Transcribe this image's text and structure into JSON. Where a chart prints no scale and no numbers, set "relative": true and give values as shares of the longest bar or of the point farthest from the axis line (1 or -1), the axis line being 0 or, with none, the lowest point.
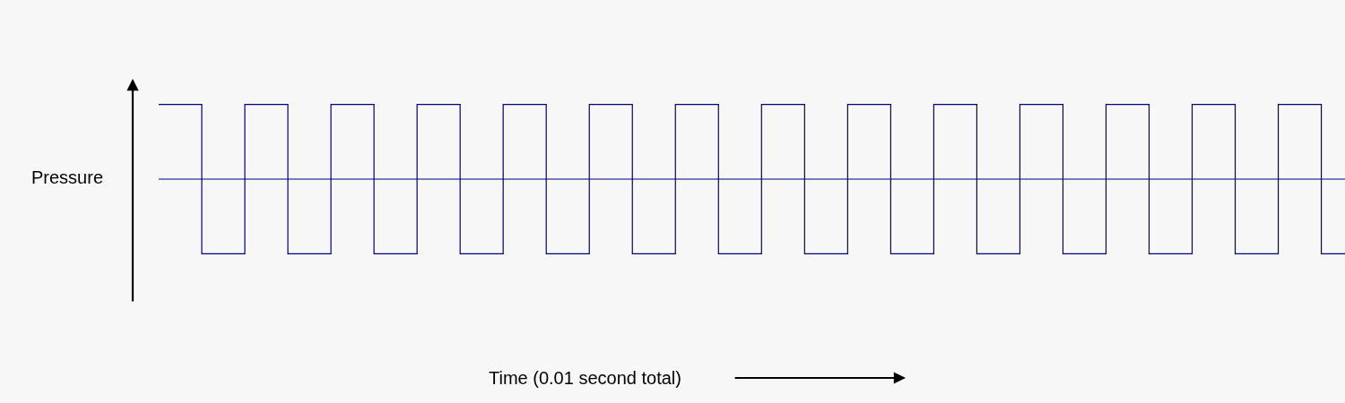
{
  "chart_data": {
    "type": "step",
    "relative": true,
    "annotations": [
      "Time (0.01 second total)"
    ],
    "ylabel": "Pressure",
    "categories": [
      null,
      null,
      null,
      null,
      null,
      null,
      null,
      null,
      null,
      null,
      null,
      null,
      null,
      null,
      null,
      null,
      null,
      null,
      null,
      null,
      null,
      null,
      null,
      null,
      null,
      null,
      null,
      null,
      null
    ],
    "series": [
      {
        "color": "#000080",
        "values": [
          1,
          -1,
          1,
          -1,
          1,
          -1,
          1,
          -1,
          1,
          -1,
          1,
          -1,
          1,
          -1,
          1,
          -1,
          1,
          -1,
          1,
          -1,
          1,
          -1,
          1,
          -1,
          1,
          -1,
          1,
          -1,
          -1
        ]
      }
    ],
    "ref_lines": [
      {
        "axis": "y",
        "value": 0,
        "color": "#000080"
      }
    ],
    "marker": "none",
    "line_style": "solid"
  }
}
